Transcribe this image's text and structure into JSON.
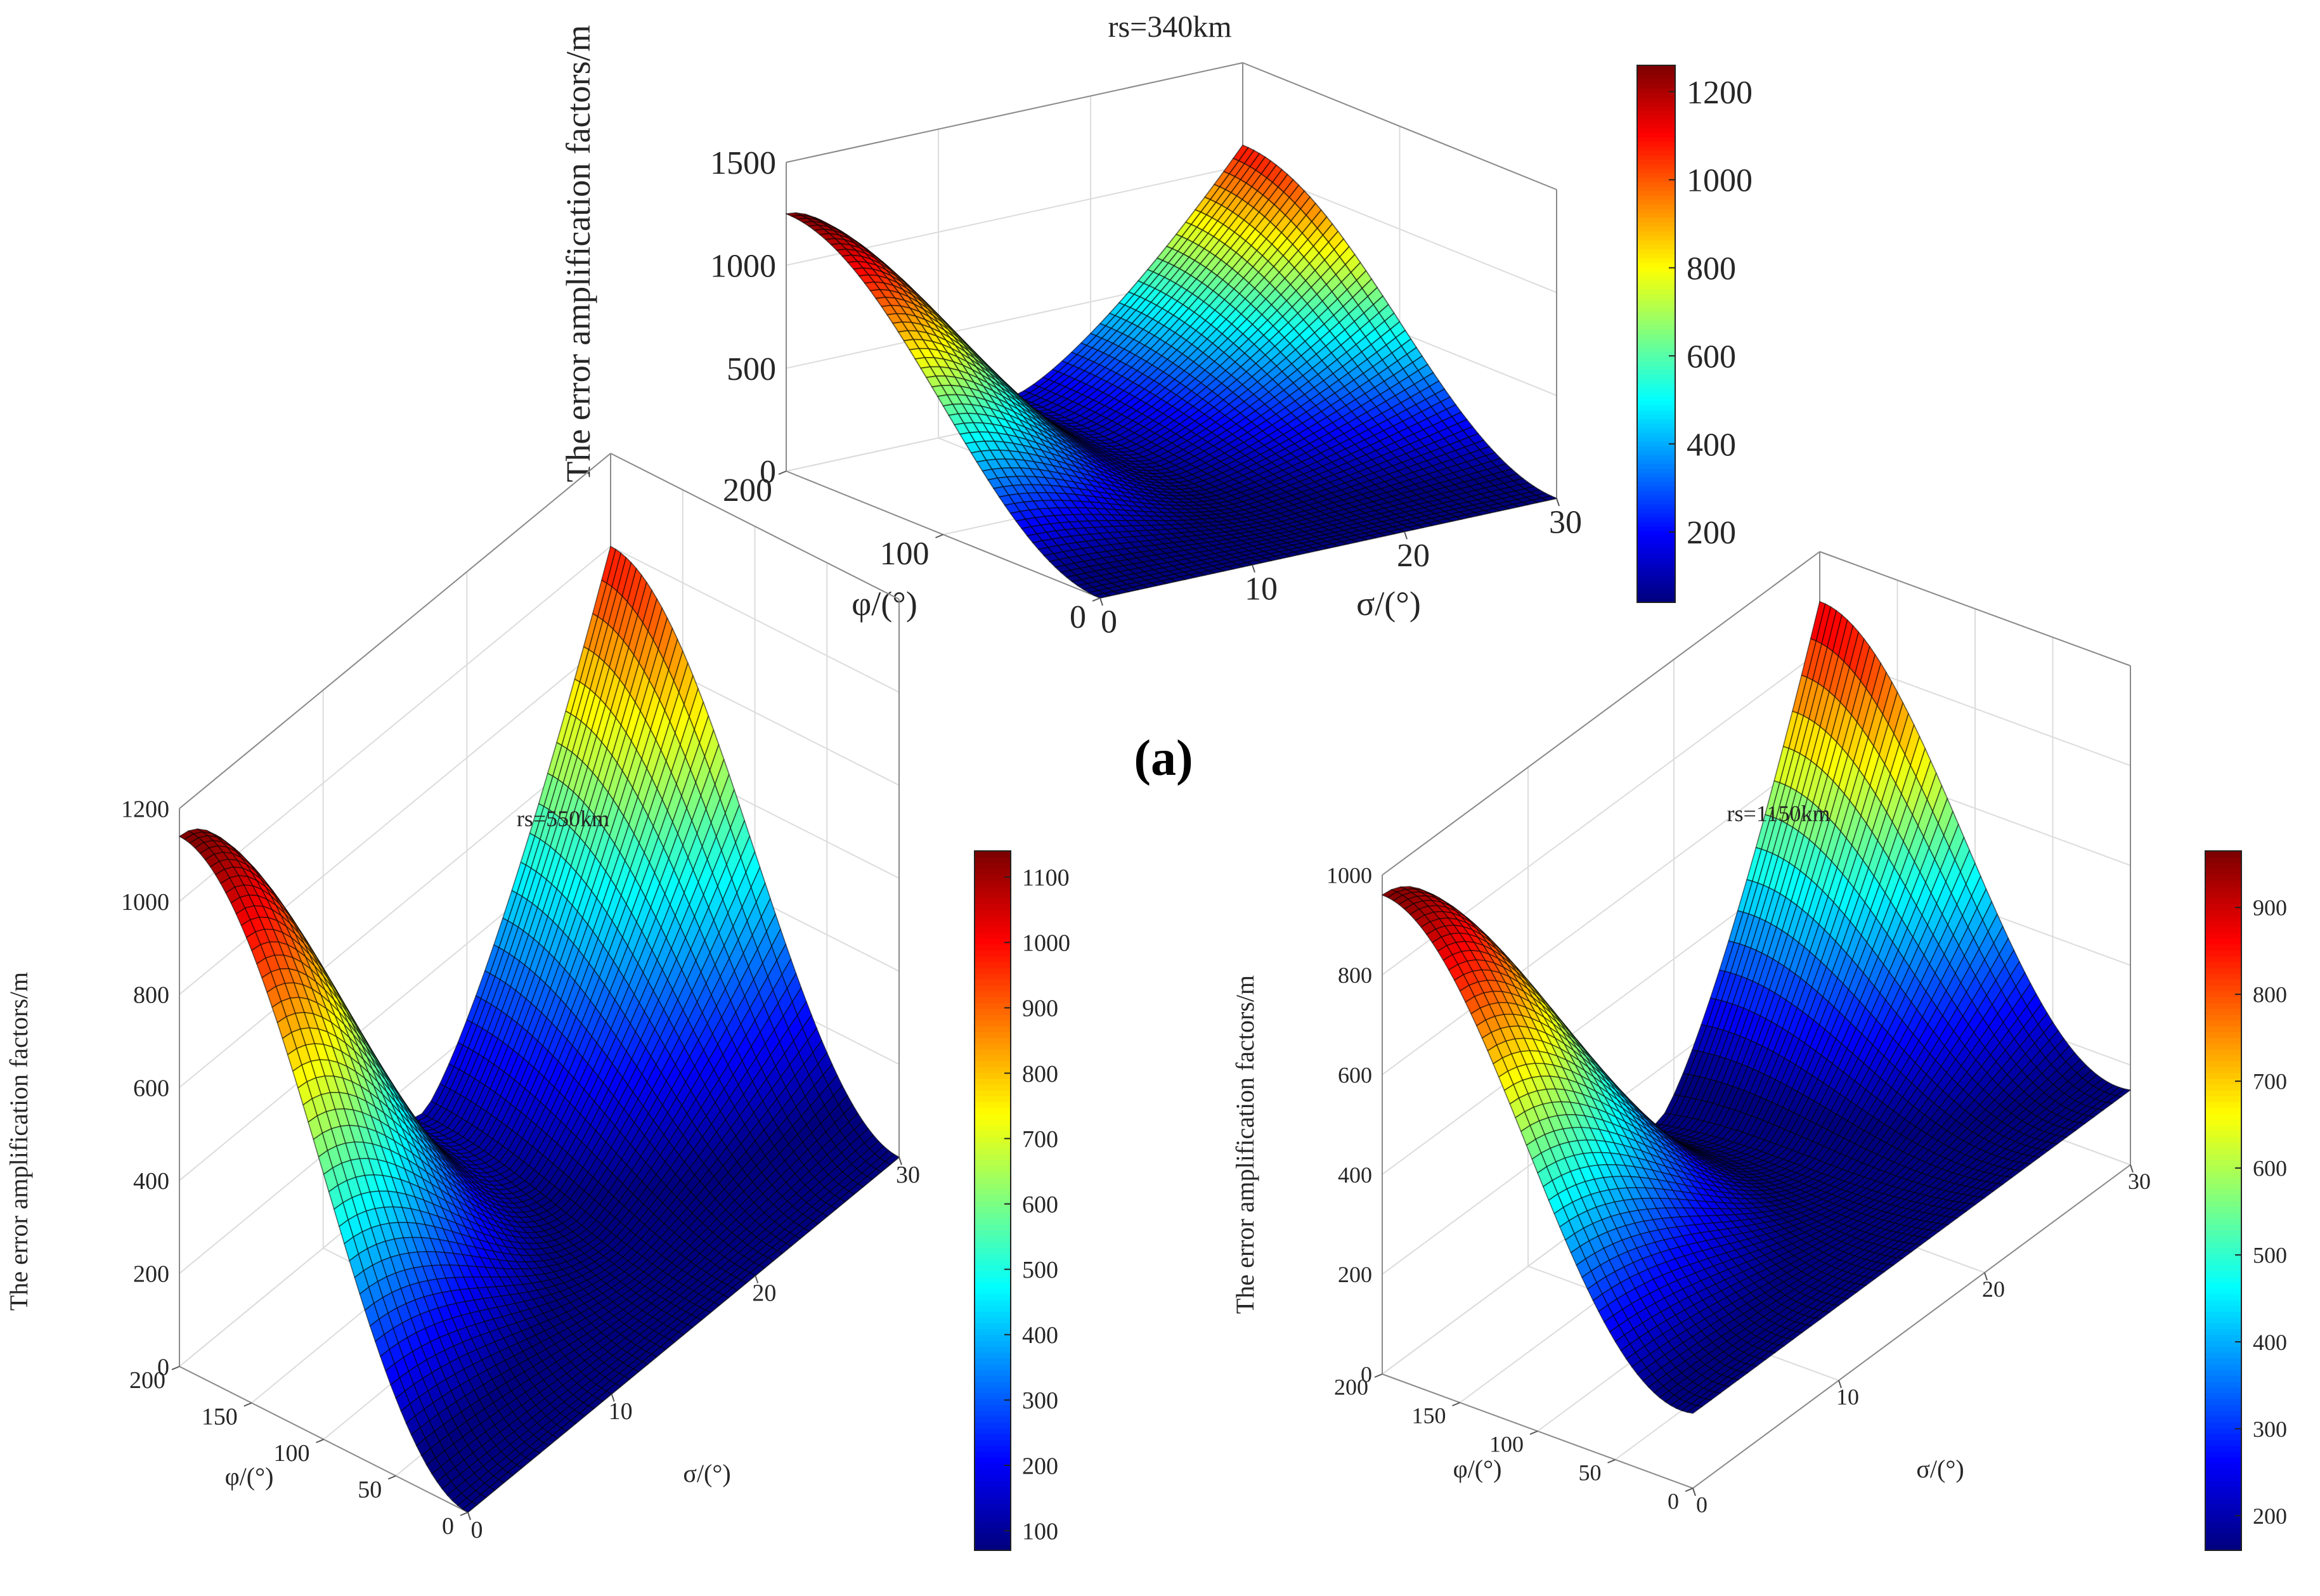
{
  "chart_data": [
    {
      "type": "surface",
      "panel": "top",
      "title": "rs=340km",
      "zlabel": "The error amplification factors/m",
      "xlabel": "φ/(°)",
      "ylabel": "σ/(°)",
      "xlim": [
        0,
        200
      ],
      "ylim": [
        0,
        30
      ],
      "zlim": [
        0,
        1500
      ],
      "xticks": [
        "0",
        "100",
        "200"
      ],
      "yticks": [
        "0",
        "10",
        "20",
        "30"
      ],
      "zticks": [
        "0",
        "500",
        "1000",
        "1500"
      ],
      "surface": {
        "peak_at_phi200_sigma0": 1250,
        "ridge_at_phi200_sigma30": 1100,
        "value_at_phi0": 0,
        "min_sigma": 15
      },
      "colorbar": {
        "ticks": [
          "200",
          "400",
          "600",
          "800",
          "1000",
          "1200"
        ],
        "min": 40,
        "max": 1260
      }
    },
    {
      "type": "surface",
      "panel": "bottom-left",
      "title": "rs=550km",
      "zlabel": "The error amplification factors/m",
      "xlabel": "φ/(°)",
      "ylabel": "σ/(°)",
      "xlim": [
        0,
        200
      ],
      "ylim": [
        0,
        30
      ],
      "zlim": [
        0,
        1200
      ],
      "xticks": [
        "0",
        "50",
        "100",
        "150",
        "200"
      ],
      "yticks": [
        "0",
        "10",
        "20",
        "30"
      ],
      "zticks": [
        "0",
        "200",
        "400",
        "600",
        "800",
        "1000",
        "1200"
      ],
      "surface": {
        "peak_at_phi200_sigma0": 1140,
        "ridge_at_phi200_sigma30": 1000,
        "value_at_phi0": 0,
        "min_sigma": 17
      },
      "colorbar": {
        "ticks": [
          "100",
          "200",
          "300",
          "400",
          "500",
          "600",
          "700",
          "800",
          "900",
          "1000",
          "1100"
        ],
        "min": 70,
        "max": 1140
      }
    },
    {
      "type": "surface",
      "panel": "bottom-right",
      "title": "rs=1150km",
      "zlabel": "The error amplification factors/m",
      "xlabel": "φ/(°)",
      "ylabel": "σ/(°)",
      "xlim": [
        0,
        200
      ],
      "ylim": [
        0,
        30
      ],
      "zlim": [
        0,
        1000
      ],
      "xticks": [
        "0",
        "50",
        "100",
        "150",
        "200"
      ],
      "yticks": [
        "0",
        "10",
        "20",
        "30"
      ],
      "zticks": [
        "0",
        "200",
        "400",
        "600",
        "800",
        "1000"
      ],
      "surface": {
        "peak_at_phi200_sigma0": 960,
        "ridge_at_phi200_sigma30": 900,
        "value_at_phi0": 150,
        "min_sigma": 19
      },
      "colorbar": {
        "ticks": [
          "200",
          "300",
          "400",
          "500",
          "600",
          "700",
          "800",
          "900"
        ],
        "min": 160,
        "max": 965
      }
    }
  ],
  "caption_a": "(a)",
  "colormap": [
    "#00007f",
    "#0000ff",
    "#007fff",
    "#00ffff",
    "#7fff7f",
    "#ffff00",
    "#ff7f00",
    "#ff0000",
    "#7f0000"
  ]
}
